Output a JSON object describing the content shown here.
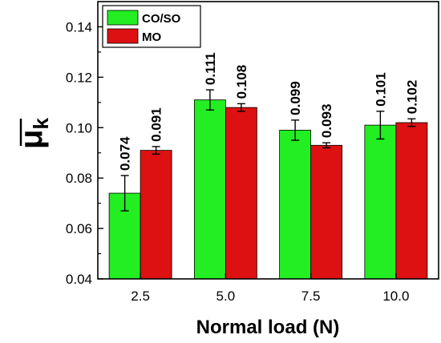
{
  "chart_data": {
    "type": "bar",
    "categories": [
      "2.5",
      "5.0",
      "7.5",
      "10.0"
    ],
    "series": [
      {
        "name": "CO/SO",
        "color": "#22ee22",
        "values": [
          0.074,
          0.111,
          0.099,
          0.101
        ],
        "errors": [
          0.007,
          0.004,
          0.004,
          0.0055
        ],
        "labels": [
          "0.074",
          "0.111",
          "0.099",
          "0.101"
        ]
      },
      {
        "name": "MO",
        "color": "#dd1111",
        "values": [
          0.091,
          0.108,
          0.093,
          0.102
        ],
        "errors": [
          0.0015,
          0.0015,
          0.001,
          0.0015
        ],
        "labels": [
          "0.091",
          "0.108",
          "0.093",
          "0.102"
        ]
      }
    ],
    "xlabel": "Normal load (N)",
    "ylabel_main": "μ",
    "ylabel_sub": "k",
    "ylim": [
      0.04,
      0.15
    ],
    "yticks": [
      "0.04",
      "0.06",
      "0.08",
      "0.10",
      "0.12",
      "0.14"
    ],
    "ytick_values": [
      0.04,
      0.06,
      0.08,
      0.1,
      0.12,
      0.14
    ],
    "legend_position": "top-left",
    "grid": false
  }
}
